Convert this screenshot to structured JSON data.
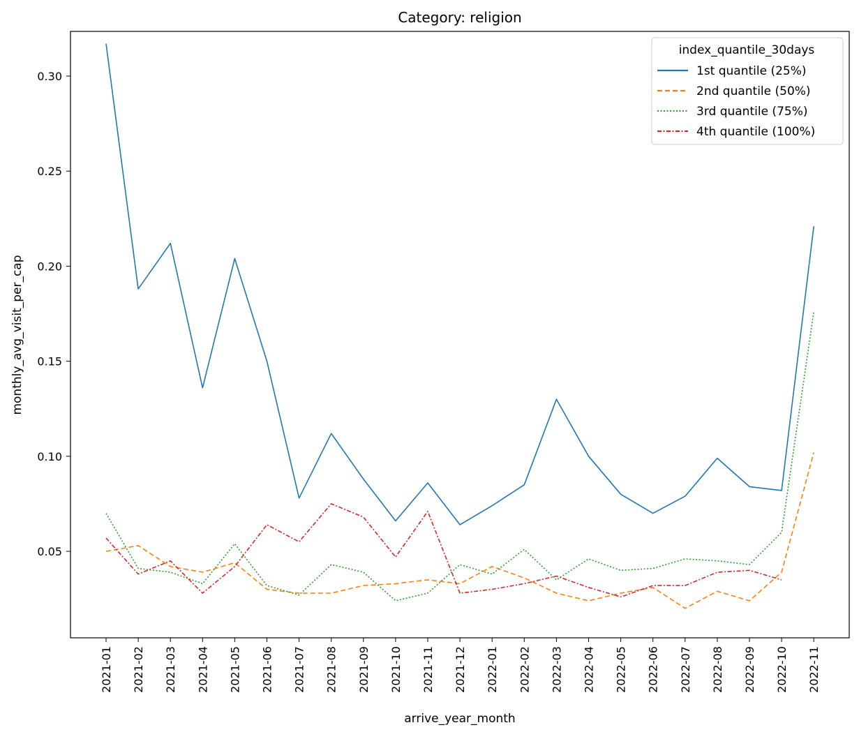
{
  "chart_data": {
    "type": "line",
    "title": "Category: religion",
    "xlabel": "arrive_year_month",
    "ylabel": "monthly_avg_visit_per_cap",
    "ylim": [
      0.0045,
      0.3235
    ],
    "yticks": [
      0.05,
      0.1,
      0.15,
      0.2,
      0.25,
      0.3
    ],
    "ytick_labels": [
      "0.05",
      "0.10",
      "0.15",
      "0.20",
      "0.25",
      "0.30"
    ],
    "grid": false,
    "legend_title": "index_quantile_30days",
    "legend_position": "top-right",
    "categories": [
      "2021-01",
      "2021-02",
      "2021-03",
      "2021-04",
      "2021-05",
      "2021-06",
      "2021-07",
      "2021-08",
      "2021-09",
      "2021-10",
      "2021-11",
      "2021-12",
      "2022-01",
      "2022-02",
      "2022-03",
      "2022-04",
      "2022-05",
      "2022-06",
      "2022-07",
      "2022-08",
      "2022-09",
      "2022-10",
      "2022-11"
    ],
    "series": [
      {
        "name": "1st quantile (25%)",
        "color": "#1f77b4",
        "dash": "solid",
        "values": [
          0.317,
          0.188,
          0.212,
          0.136,
          0.204,
          0.15,
          0.078,
          0.112,
          0.088,
          0.066,
          0.086,
          0.064,
          0.074,
          0.085,
          0.13,
          0.1,
          0.08,
          0.07,
          0.079,
          0.099,
          0.084,
          0.082,
          0.221
        ]
      },
      {
        "name": "2nd quantile (50%)",
        "color": "#ff7f0e",
        "dash": "dashed",
        "values": [
          0.05,
          0.053,
          0.042,
          0.039,
          0.044,
          0.03,
          0.028,
          0.028,
          0.032,
          0.033,
          0.035,
          0.033,
          0.042,
          0.036,
          0.028,
          0.024,
          0.028,
          0.031,
          0.02,
          0.029,
          0.024,
          0.039,
          0.102
        ]
      },
      {
        "name": "3rd quantile (75%)",
        "color": "#2ca02c",
        "dash": "dotted",
        "values": [
          0.07,
          0.041,
          0.039,
          0.033,
          0.054,
          0.032,
          0.027,
          0.043,
          0.039,
          0.024,
          0.028,
          0.043,
          0.038,
          0.051,
          0.035,
          0.046,
          0.04,
          0.041,
          0.046,
          0.045,
          0.043,
          0.06,
          0.176
        ]
      },
      {
        "name": "4th quantile (100%)",
        "color": "#d62728",
        "dash": "dashdot",
        "values": [
          0.057,
          0.038,
          0.045,
          0.028,
          0.042,
          0.064,
          0.055,
          0.075,
          0.068,
          0.047,
          0.071,
          0.028,
          0.03,
          0.033,
          0.037,
          0.031,
          0.026,
          0.032,
          0.032,
          0.039,
          0.04,
          0.035,
          null
        ]
      }
    ]
  }
}
